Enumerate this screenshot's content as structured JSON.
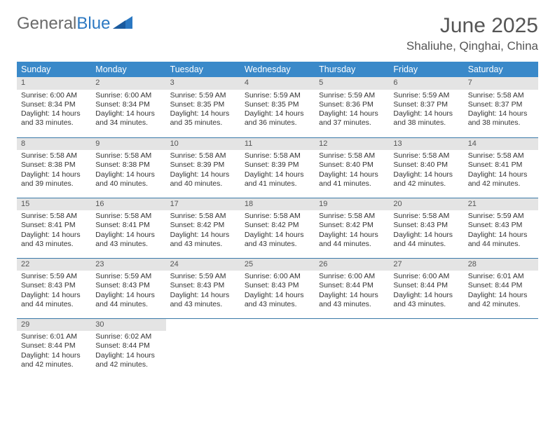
{
  "logo": {
    "word1": "General",
    "word2": "Blue"
  },
  "title": "June 2025",
  "subtitle": "Shaliuhe, Qinghai, China",
  "colors": {
    "header_bg": "#3a89c9",
    "header_text": "#ffffff",
    "daynum_bg": "#e4e4e4",
    "row_border": "#3a79a8",
    "logo_blue": "#2b78c2",
    "logo_gray": "#6a6a6a",
    "body_text": "#333333",
    "title_text": "#555555"
  },
  "weekdays": [
    "Sunday",
    "Monday",
    "Tuesday",
    "Wednesday",
    "Thursday",
    "Friday",
    "Saturday"
  ],
  "days": [
    {
      "n": 1,
      "sunrise": "6:00 AM",
      "sunset": "8:34 PM",
      "dl1": "Daylight: 14 hours",
      "dl2": "and 33 minutes."
    },
    {
      "n": 2,
      "sunrise": "6:00 AM",
      "sunset": "8:34 PM",
      "dl1": "Daylight: 14 hours",
      "dl2": "and 34 minutes."
    },
    {
      "n": 3,
      "sunrise": "5:59 AM",
      "sunset": "8:35 PM",
      "dl1": "Daylight: 14 hours",
      "dl2": "and 35 minutes."
    },
    {
      "n": 4,
      "sunrise": "5:59 AM",
      "sunset": "8:35 PM",
      "dl1": "Daylight: 14 hours",
      "dl2": "and 36 minutes."
    },
    {
      "n": 5,
      "sunrise": "5:59 AM",
      "sunset": "8:36 PM",
      "dl1": "Daylight: 14 hours",
      "dl2": "and 37 minutes."
    },
    {
      "n": 6,
      "sunrise": "5:59 AM",
      "sunset": "8:37 PM",
      "dl1": "Daylight: 14 hours",
      "dl2": "and 38 minutes."
    },
    {
      "n": 7,
      "sunrise": "5:58 AM",
      "sunset": "8:37 PM",
      "dl1": "Daylight: 14 hours",
      "dl2": "and 38 minutes."
    },
    {
      "n": 8,
      "sunrise": "5:58 AM",
      "sunset": "8:38 PM",
      "dl1": "Daylight: 14 hours",
      "dl2": "and 39 minutes."
    },
    {
      "n": 9,
      "sunrise": "5:58 AM",
      "sunset": "8:38 PM",
      "dl1": "Daylight: 14 hours",
      "dl2": "and 40 minutes."
    },
    {
      "n": 10,
      "sunrise": "5:58 AM",
      "sunset": "8:39 PM",
      "dl1": "Daylight: 14 hours",
      "dl2": "and 40 minutes."
    },
    {
      "n": 11,
      "sunrise": "5:58 AM",
      "sunset": "8:39 PM",
      "dl1": "Daylight: 14 hours",
      "dl2": "and 41 minutes."
    },
    {
      "n": 12,
      "sunrise": "5:58 AM",
      "sunset": "8:40 PM",
      "dl1": "Daylight: 14 hours",
      "dl2": "and 41 minutes."
    },
    {
      "n": 13,
      "sunrise": "5:58 AM",
      "sunset": "8:40 PM",
      "dl1": "Daylight: 14 hours",
      "dl2": "and 42 minutes."
    },
    {
      "n": 14,
      "sunrise": "5:58 AM",
      "sunset": "8:41 PM",
      "dl1": "Daylight: 14 hours",
      "dl2": "and 42 minutes."
    },
    {
      "n": 15,
      "sunrise": "5:58 AM",
      "sunset": "8:41 PM",
      "dl1": "Daylight: 14 hours",
      "dl2": "and 43 minutes."
    },
    {
      "n": 16,
      "sunrise": "5:58 AM",
      "sunset": "8:41 PM",
      "dl1": "Daylight: 14 hours",
      "dl2": "and 43 minutes."
    },
    {
      "n": 17,
      "sunrise": "5:58 AM",
      "sunset": "8:42 PM",
      "dl1": "Daylight: 14 hours",
      "dl2": "and 43 minutes."
    },
    {
      "n": 18,
      "sunrise": "5:58 AM",
      "sunset": "8:42 PM",
      "dl1": "Daylight: 14 hours",
      "dl2": "and 43 minutes."
    },
    {
      "n": 19,
      "sunrise": "5:58 AM",
      "sunset": "8:42 PM",
      "dl1": "Daylight: 14 hours",
      "dl2": "and 44 minutes."
    },
    {
      "n": 20,
      "sunrise": "5:58 AM",
      "sunset": "8:43 PM",
      "dl1": "Daylight: 14 hours",
      "dl2": "and 44 minutes."
    },
    {
      "n": 21,
      "sunrise": "5:59 AM",
      "sunset": "8:43 PM",
      "dl1": "Daylight: 14 hours",
      "dl2": "and 44 minutes."
    },
    {
      "n": 22,
      "sunrise": "5:59 AM",
      "sunset": "8:43 PM",
      "dl1": "Daylight: 14 hours",
      "dl2": "and 44 minutes."
    },
    {
      "n": 23,
      "sunrise": "5:59 AM",
      "sunset": "8:43 PM",
      "dl1": "Daylight: 14 hours",
      "dl2": "and 44 minutes."
    },
    {
      "n": 24,
      "sunrise": "5:59 AM",
      "sunset": "8:43 PM",
      "dl1": "Daylight: 14 hours",
      "dl2": "and 43 minutes."
    },
    {
      "n": 25,
      "sunrise": "6:00 AM",
      "sunset": "8:43 PM",
      "dl1": "Daylight: 14 hours",
      "dl2": "and 43 minutes."
    },
    {
      "n": 26,
      "sunrise": "6:00 AM",
      "sunset": "8:44 PM",
      "dl1": "Daylight: 14 hours",
      "dl2": "and 43 minutes."
    },
    {
      "n": 27,
      "sunrise": "6:00 AM",
      "sunset": "8:44 PM",
      "dl1": "Daylight: 14 hours",
      "dl2": "and 43 minutes."
    },
    {
      "n": 28,
      "sunrise": "6:01 AM",
      "sunset": "8:44 PM",
      "dl1": "Daylight: 14 hours",
      "dl2": "and 42 minutes."
    },
    {
      "n": 29,
      "sunrise": "6:01 AM",
      "sunset": "8:44 PM",
      "dl1": "Daylight: 14 hours",
      "dl2": "and 42 minutes."
    },
    {
      "n": 30,
      "sunrise": "6:02 AM",
      "sunset": "8:44 PM",
      "dl1": "Daylight: 14 hours",
      "dl2": "and 42 minutes."
    }
  ],
  "labels": {
    "sunrise": "Sunrise:",
    "sunset": "Sunset:"
  },
  "layout": {
    "start_weekday": 0,
    "total_cells": 35
  }
}
